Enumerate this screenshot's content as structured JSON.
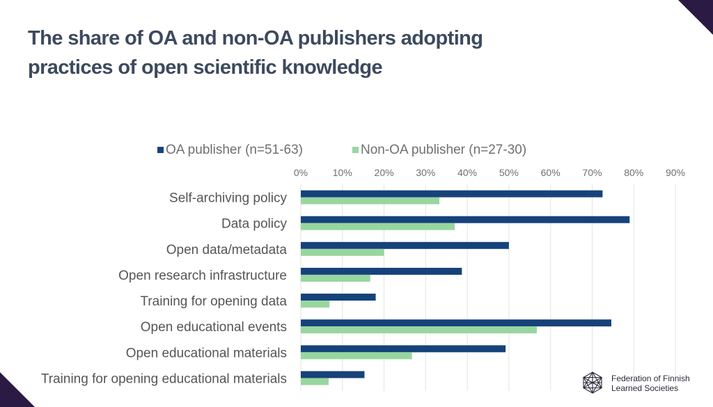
{
  "page": {
    "title_line1": "The share of OA and non-OA publishers adopting",
    "title_line2": "practices of open scientific knowledge"
  },
  "logo": {
    "line1": "Federation of Finnish",
    "line2": "Learned Societies",
    "icon": "network-star-icon"
  },
  "colors": {
    "oa": "#16427a",
    "non_oa": "#98d69f",
    "corner": "#2a1a44",
    "title": "#3d4a5e",
    "grid": "#e3e3e3",
    "tick_text": "#6f6f6f",
    "category_text": "#555555"
  },
  "chart_data": {
    "type": "bar",
    "orientation": "horizontal",
    "title": "",
    "xlabel": "",
    "ylabel": "",
    "xlim": [
      0,
      0.9
    ],
    "x_ticks": [
      "0%",
      "10%",
      "20%",
      "30%",
      "40%",
      "50%",
      "60%",
      "70%",
      "80%",
      "90%"
    ],
    "x_tick_values": [
      0,
      0.1,
      0.2,
      0.3,
      0.4,
      0.5,
      0.6,
      0.7,
      0.8,
      0.9
    ],
    "x_axis_position": "top",
    "grid": true,
    "legend_position": "top",
    "categories": [
      "Self-archiving policy",
      "Data policy",
      "Open data/metadata",
      "Open research infrastructure",
      "Training for opening data",
      "Open educational events",
      "Open educational materials",
      "Training for opening educational materials"
    ],
    "series": [
      {
        "name": "OA publisher (n=51-63)",
        "color": "#16427a",
        "values": [
          0.725,
          0.79,
          0.5,
          0.387,
          0.18,
          0.746,
          0.492,
          0.153
        ]
      },
      {
        "name": "Non-OA publisher (n=27-30)",
        "color": "#98d69f",
        "values": [
          0.333,
          0.37,
          0.2,
          0.167,
          0.069,
          0.567,
          0.267,
          0.067
        ]
      }
    ]
  }
}
